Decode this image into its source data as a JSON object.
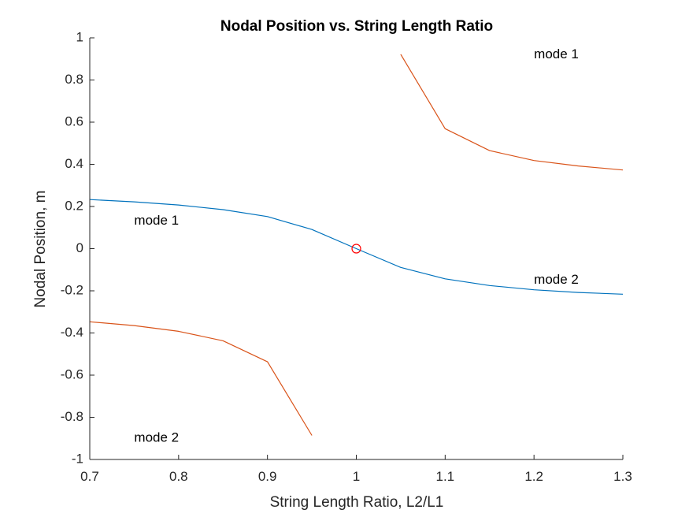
{
  "chart_data": {
    "type": "line",
    "title": "Nodal Position vs. String Length Ratio",
    "xlabel": "String Length Ratio,  L2/L1",
    "ylabel": "Nodal Position,  m",
    "xlim": [
      0.7,
      1.3
    ],
    "ylim": [
      -1,
      1
    ],
    "xticks": [
      0.7,
      0.8,
      0.9,
      1,
      1.1,
      1.2,
      1.3
    ],
    "xtick_labels": [
      "0.7",
      "0.8",
      "0.9",
      "1",
      "1.1",
      "1.2",
      "1.3"
    ],
    "yticks": [
      -1,
      -0.8,
      -0.6,
      -0.4,
      -0.2,
      0,
      0.2,
      0.4,
      0.6,
      0.8,
      1
    ],
    "ytick_labels": [
      "-1",
      "-0.8",
      "-0.6",
      "-0.4",
      "-0.2",
      "0",
      "0.2",
      "0.4",
      "0.6",
      "0.8",
      "1"
    ],
    "grid": false,
    "series": [
      {
        "color": "#0072BD",
        "x": [
          0.7,
          0.75,
          0.8,
          0.85,
          0.9,
          0.95,
          1.0,
          1.05,
          1.1,
          1.15,
          1.2,
          1.25,
          1.3
        ],
        "y": [
          0.233,
          0.222,
          0.207,
          0.185,
          0.152,
          0.091,
          0.0,
          -0.089,
          -0.143,
          -0.175,
          -0.195,
          -0.208,
          -0.216
        ]
      },
      {
        "color": "#D95319",
        "x": [
          0.7,
          0.75,
          0.8,
          0.85,
          0.9,
          0.95
        ],
        "y": [
          -0.347,
          -0.365,
          -0.392,
          -0.437,
          -0.537,
          -0.886
        ]
      },
      {
        "color": "#D95319",
        "x": [
          1.05,
          1.1,
          1.15,
          1.2,
          1.25,
          1.3
        ],
        "y": [
          0.922,
          0.569,
          0.465,
          0.418,
          0.392,
          0.373
        ]
      }
    ],
    "markers": [
      {
        "x": 1.0,
        "y": 0.0,
        "shape": "circle",
        "color": "#FF0000"
      }
    ],
    "annotations": [
      {
        "text": "mode 1",
        "x": 1.2,
        "y": 0.92
      },
      {
        "text": "mode 1",
        "x": 0.75,
        "y": 0.13
      },
      {
        "text": "mode 2",
        "x": 1.2,
        "y": -0.15
      },
      {
        "text": "mode 2",
        "x": 0.75,
        "y": -0.9
      }
    ]
  }
}
